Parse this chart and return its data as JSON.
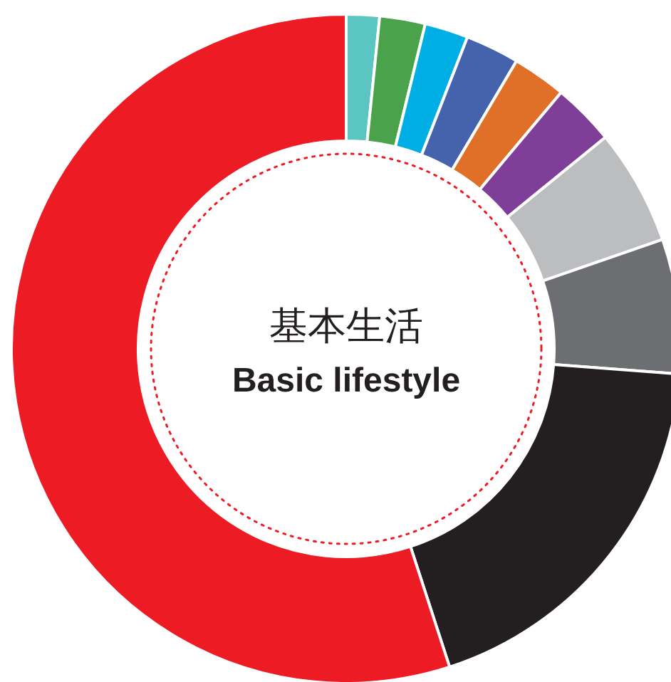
{
  "chart_data": {
    "type": "donut",
    "title": "基本生活",
    "subtitle": "Basic lifestyle",
    "categories": [
      null,
      null,
      null,
      null,
      null,
      null,
      null,
      null,
      null,
      null
    ],
    "values": [
      1.6,
      2.2,
      2.1,
      2.6,
      2.6,
      3.0,
      5.6,
      6.5,
      18.8,
      55.0
    ],
    "colors": [
      "#5bc5c2",
      "#4aa34a",
      "#00aee6",
      "#4563ad",
      "#e07028",
      "#7f3f98",
      "#bcbdbf",
      "#6d6e71",
      "#231f20",
      "#ed1c24"
    ]
  }
}
